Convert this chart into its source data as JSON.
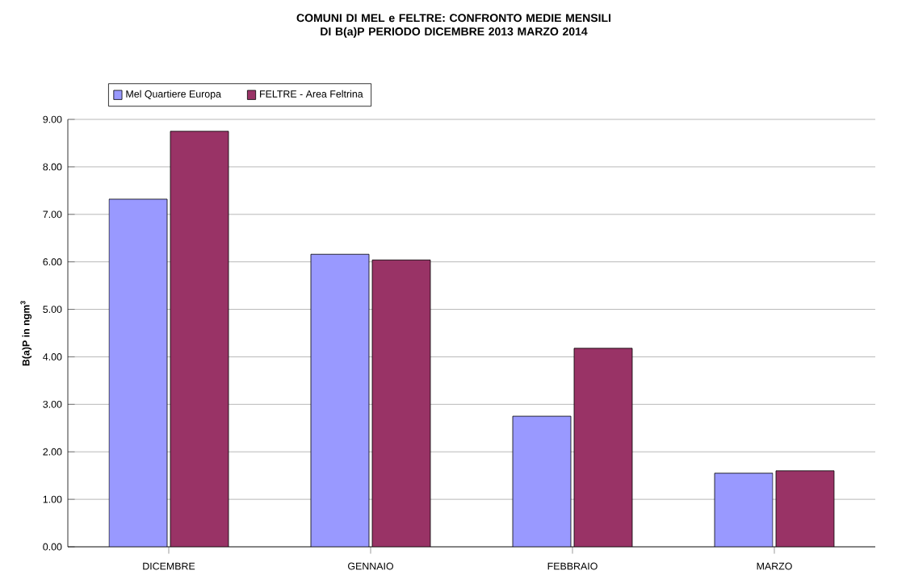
{
  "chart_data": {
    "type": "bar",
    "title": "COMUNI DI MEL e FELTRE: CONFRONTO MEDIE MENSILI DI B(a)P PERIODO DICEMBRE 2013 MARZO 2014",
    "ylabel": "B(a)P in ngm$^{3}$",
    "categories": [
      "DICEMBRE",
      "GENNAIO",
      "FEBBRAIO",
      "MARZO"
    ],
    "series": [
      {
        "name": "Mel Quartiere Europa",
        "color": "#9999ff",
        "values": [
          7.32,
          6.16,
          2.75,
          1.55
        ]
      },
      {
        "name": "FELTRE - Area Feltrina",
        "color": "#993366",
        "values": [
          8.75,
          6.04,
          4.18,
          1.6
        ]
      }
    ],
    "ylim": [
      0,
      9
    ],
    "yticks": [
      {
        "value": 0,
        "label": "0.00"
      },
      {
        "value": 1,
        "label": "1.00"
      },
      {
        "value": 2,
        "label": "2.00"
      },
      {
        "value": 3,
        "label": "3.00"
      },
      {
        "value": 4,
        "label": "4.00"
      },
      {
        "value": 5,
        "label": "5.00"
      },
      {
        "value": 6,
        "label": "6.00"
      },
      {
        "value": 7,
        "label": "7.00"
      },
      {
        "value": 8,
        "label": "8.00"
      },
      {
        "value": 9,
        "label": "9.00"
      }
    ],
    "grid": "y",
    "legend": "top left"
  }
}
